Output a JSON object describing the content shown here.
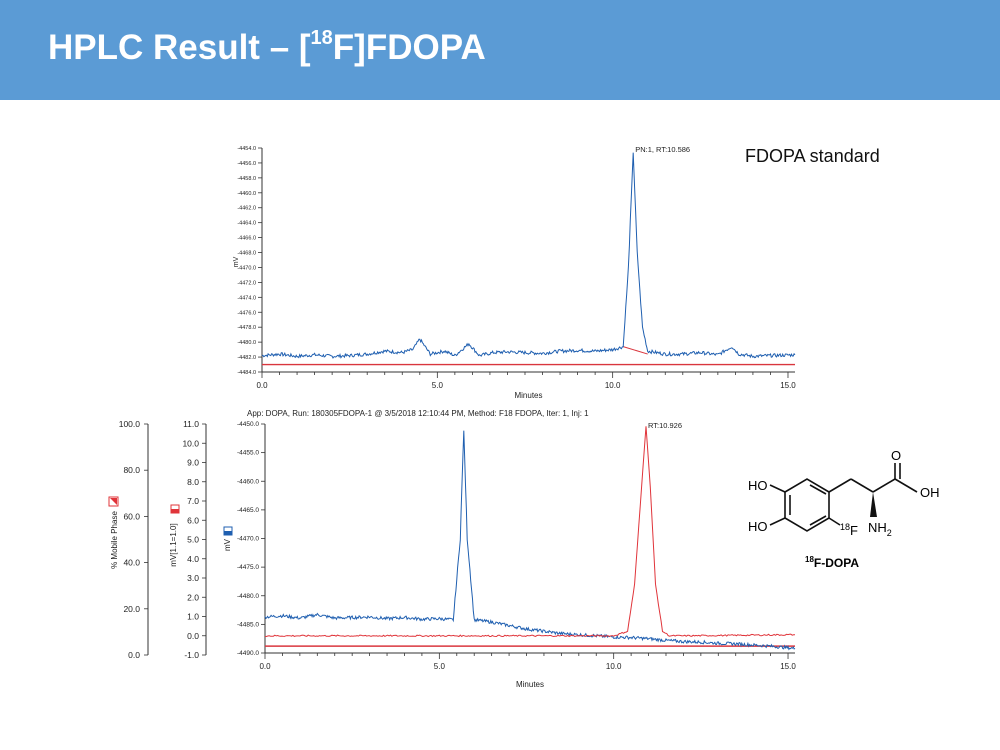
{
  "slide": {
    "title_pre": "HPLC Result – [",
    "title_sup": "18",
    "title_post": "F]FDOPA",
    "standard_label": "FDOPA standard"
  },
  "colors": {
    "header": "#5b9bd5",
    "uv_trace": "#1f5fb0",
    "radio_trace": "#e0343a",
    "baseline": "#d9363e"
  },
  "chart_data": [
    {
      "type": "line",
      "title": "",
      "xlabel": "Minutes",
      "ylabel": "mV",
      "xlim": [
        0,
        15.2
      ],
      "ylim": [
        -4484.0,
        -4454.0
      ],
      "x_ticks": [
        "0.0",
        "5.0",
        "10.0",
        "15.0"
      ],
      "y_ticks": [
        "-4454.0",
        "-4456.0",
        "-4458.0",
        "-4460.0",
        "-4462.0",
        "-4464.0",
        "-4466.0",
        "-4468.0",
        "-4470.0",
        "-4472.0",
        "-4474.0",
        "-4476.0",
        "-4478.0",
        "-4480.0",
        "-4482.0",
        "-4484.0"
      ],
      "annotations": [
        {
          "text": "PN:1, RT:10.586",
          "x": 10.586
        }
      ],
      "series": [
        {
          "x": [
            0.0,
            0.5,
            1.0,
            1.5,
            2.0,
            2.5,
            3.0,
            3.5,
            4.0,
            4.3,
            4.5,
            4.8,
            5.2,
            5.5,
            5.9,
            6.2,
            6.6,
            7.0,
            7.5,
            8.0,
            8.5,
            9.0,
            9.5,
            10.0,
            10.3,
            10.45,
            10.586,
            10.7,
            10.85,
            11.0,
            11.5,
            12.0,
            12.5,
            13.0,
            13.4,
            13.6,
            14.0,
            14.5,
            15.2
          ],
          "values": [
            -4481.8,
            -4481.6,
            -4481.9,
            -4481.7,
            -4481.9,
            -4481.8,
            -4481.6,
            -4481.2,
            -4481.4,
            -4481.0,
            -4479.6,
            -4481.6,
            -4481.2,
            -4481.8,
            -4480.2,
            -4481.8,
            -4481.4,
            -4481.3,
            -4481.4,
            -4481.5,
            -4481.2,
            -4481.1,
            -4481.2,
            -4481.0,
            -4480.6,
            -4470.0,
            -4454.5,
            -4468.0,
            -4478.0,
            -4481.2,
            -4481.6,
            -4481.6,
            -4481.4,
            -4481.7,
            -4480.6,
            -4481.6,
            -4481.9,
            -4481.8,
            -4481.7
          ]
        }
      ],
      "baseline": {
        "x": [
          0.0,
          15.2
        ],
        "values": [
          -4483.0,
          -4483.0
        ]
      },
      "integration_line": {
        "x": [
          10.3,
          11.0
        ],
        "values": [
          -4480.6,
          -4481.6
        ]
      }
    },
    {
      "type": "line",
      "title": "App: DOPA, Run: 180305FDOPA-1 @ 3/5/2018 12:10:44 PM, Method: F18 FDOPA, Iter: 1, Inj: 1",
      "xlabel": "Minutes",
      "ylabels": [
        "% Mobile Phase",
        "mV[1.1=1.0]",
        "mV"
      ],
      "xlim": [
        0,
        15.2
      ],
      "ylim": [
        -4490.0,
        -4450.0
      ],
      "x_ticks": [
        "0.0",
        "5.0",
        "10.0",
        "15.0"
      ],
      "y_ticks": [
        "-4450.0",
        "-4455.0",
        "-4460.0",
        "-4465.0",
        "-4470.0",
        "-4475.0",
        "-4480.0",
        "-4485.0",
        "-4490.0"
      ],
      "axis_mobile_phase": {
        "ticks": [
          "100.0",
          "80.0",
          "60.0",
          "40.0",
          "20.0",
          "0.0"
        ],
        "range": [
          0,
          100
        ]
      },
      "axis_radio": {
        "ticks": [
          "11.0",
          "10.0",
          "9.0",
          "8.0",
          "7.0",
          "6.0",
          "5.0",
          "4.0",
          "3.0",
          "2.0",
          "1.0",
          "0.0",
          "-1.0"
        ],
        "range": [
          -1.0,
          11.0
        ]
      },
      "annotations": [
        {
          "text": "RT:10.926",
          "x": 10.926
        }
      ],
      "series": [
        {
          "name": "",
          "x": [
            0.0,
            0.5,
            1.0,
            1.5,
            2.0,
            2.5,
            3.0,
            3.5,
            4.0,
            4.5,
            5.0,
            5.4,
            5.6,
            5.7,
            5.8,
            6.0,
            6.5,
            7.0,
            7.5,
            8.0,
            8.5,
            9.0,
            9.5,
            10.0,
            10.5,
            11.0,
            11.5,
            12.0,
            12.5,
            13.0,
            13.5,
            14.0,
            14.5,
            15.2
          ],
          "values": [
            -4483.7,
            -4483.5,
            -4483.9,
            -4483.3,
            -4483.9,
            -4483.8,
            -4483.7,
            -4484.0,
            -4483.8,
            -4484.1,
            -4484.0,
            -4484.2,
            -4470.0,
            -4451.0,
            -4470.0,
            -4484.2,
            -4484.6,
            -4485.2,
            -4485.8,
            -4486.2,
            -4486.6,
            -4486.8,
            -4487.0,
            -4487.2,
            -4487.3,
            -4487.5,
            -4487.8,
            -4488.0,
            -4488.1,
            -4488.3,
            -4488.4,
            -4488.6,
            -4488.8,
            -4489.2
          ]
        },
        {
          "name": "",
          "x": [
            0.0,
            5.0,
            10.0,
            10.4,
            10.6,
            10.8,
            10.926,
            11.05,
            11.2,
            11.4,
            11.6,
            12.0,
            15.2
          ],
          "values": [
            -4487.0,
            -4487.0,
            -4487.0,
            -4486.2,
            -4478.0,
            -4461.0,
            -4450.3,
            -4461.0,
            -4478.0,
            -4486.2,
            -4487.0,
            -4487.0,
            -4486.8
          ]
        }
      ],
      "baseline": {
        "x": [
          0.0,
          15.2
        ],
        "values": [
          -4488.8,
          -4488.8
        ]
      }
    }
  ],
  "molecule": {
    "label_ho1": "HO",
    "label_ho2": "HO",
    "label_o": "O",
    "label_oh": "OH",
    "label_nh": "NH",
    "label_nh_sub": "2",
    "label_f_sup": "18",
    "label_f": "F",
    "caption_sup": "18",
    "caption": "F-DOPA"
  }
}
